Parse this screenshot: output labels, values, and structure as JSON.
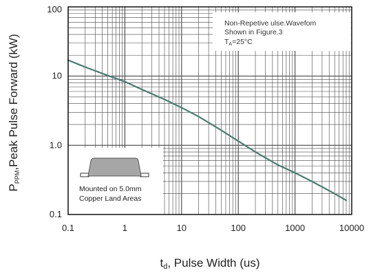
{
  "chart_data": {
    "type": "line",
    "xscale": "log",
    "yscale": "log",
    "xlim": [
      0.1,
      10000
    ],
    "ylim": [
      0.1,
      100
    ],
    "x_ticks": [
      "0.1",
      "1",
      "10",
      "100",
      "1000",
      "10000"
    ],
    "y_ticks": [
      "0.1",
      "1.0",
      "10",
      "100"
    ],
    "grid": true,
    "xlabel_main": "t",
    "xlabel_sub": "d",
    "xlabel_rest": ", Pulse Width (us)",
    "ylabel_main": "P",
    "ylabel_sub": "PPM",
    "ylabel_rest": ",Peak Pulse  Forward (kW)",
    "series": [
      {
        "x": [
          0.1,
          0.2,
          0.5,
          1,
          2,
          5,
          10,
          20,
          50,
          100,
          200,
          500,
          1000,
          2000,
          5000,
          8000
        ],
        "values": [
          17,
          13.5,
          10.2,
          8.3,
          6.4,
          4.6,
          3.5,
          2.6,
          1.65,
          1.15,
          0.8,
          0.52,
          0.4,
          0.3,
          0.2,
          0.16
        ]
      }
    ],
    "colors": {
      "line": "#4a7a72",
      "grid": "#444444",
      "frame": "#000000"
    },
    "note": {
      "line1": "Non-Repetive   ulse.Wavefom",
      "line2": "Shown in Figure.3",
      "line3_main": "T",
      "line3_sub": "A",
      "line3_rest": "=25°C"
    },
    "inset": {
      "line1": "Mounted on 5.0mm",
      "line2": "Copper Land Areas"
    }
  }
}
